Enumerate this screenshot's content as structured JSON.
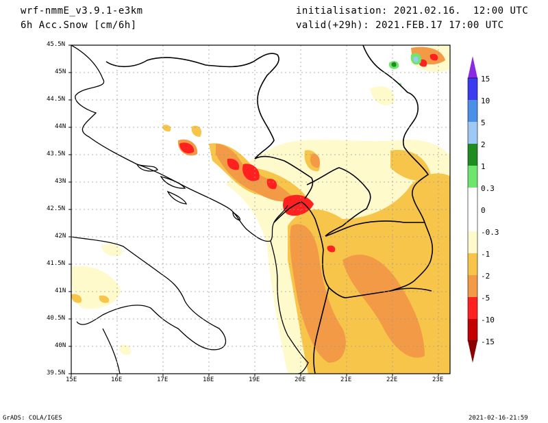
{
  "header": {
    "model": "wrf-nmmE_v3.9.1-e3km",
    "field": "6h Acc.Snow [cm/6h]",
    "init": "initialisation: 2021.02.16.  12:00 UTC",
    "valid": "valid(+29h): 2021.FEB.17 17:00 UTC"
  },
  "map": {
    "lon_labels": [
      "15E",
      "16E",
      "17E",
      "18E",
      "19E",
      "20E",
      "21E",
      "22E",
      "23E"
    ],
    "lat_labels": [
      "45.5N",
      "45N",
      "44.5N",
      "44N",
      "43.5N",
      "43N",
      "42.5N",
      "42N",
      "41.5N",
      "41N",
      "40.5N",
      "40N",
      "39.5N"
    ],
    "lon_range": [
      15,
      23.3
    ],
    "lat_range": [
      39.5,
      45.5
    ]
  },
  "colorbar": {
    "labels": [
      "15",
      "10",
      "5",
      "2",
      "1",
      "0.3",
      "0",
      "-0.3",
      "-1",
      "-2",
      "-5",
      "-10",
      "-15"
    ],
    "colors": [
      "#8a2be2",
      "#3b3bf0",
      "#4b8fe8",
      "#9ec9f5",
      "#1e8c1e",
      "#6ee66e",
      "#ffffff",
      "#fffacc",
      "#f7c54a",
      "#f29a45",
      "#ff2020",
      "#c40000",
      "#8b0000"
    ]
  },
  "footer": {
    "left": "GrADS: COLA/IGES",
    "right": "2021-02-16-21:59"
  }
}
